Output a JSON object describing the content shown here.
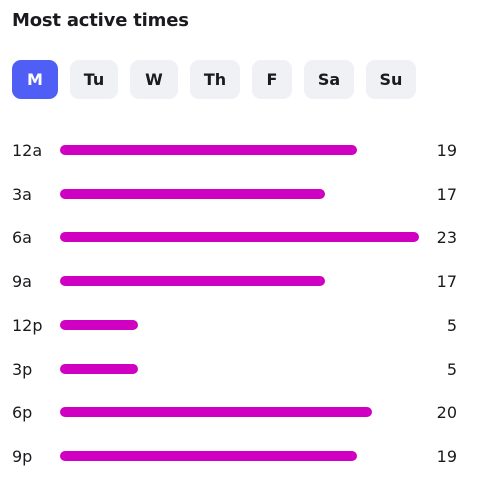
{
  "title": "Most active times",
  "days": [
    {
      "label": "M",
      "active": true
    },
    {
      "label": "Tu",
      "active": false
    },
    {
      "label": "W",
      "active": false
    },
    {
      "label": "Th",
      "active": false
    },
    {
      "label": "F",
      "active": false
    },
    {
      "label": "Sa",
      "active": false
    },
    {
      "label": "Su",
      "active": false
    }
  ],
  "colors": {
    "bar": "#d000c2",
    "active_tab": "#4f5ef5",
    "inactive_tab": "#eff1f5"
  },
  "chart_data": {
    "type": "bar",
    "orientation": "horizontal",
    "title": "Most active times",
    "categories": [
      "12a",
      "3a",
      "6a",
      "9a",
      "12p",
      "3p",
      "6p",
      "9p"
    ],
    "values": [
      19,
      17,
      23,
      17,
      5,
      5,
      20,
      19
    ],
    "value_max": 23
  }
}
